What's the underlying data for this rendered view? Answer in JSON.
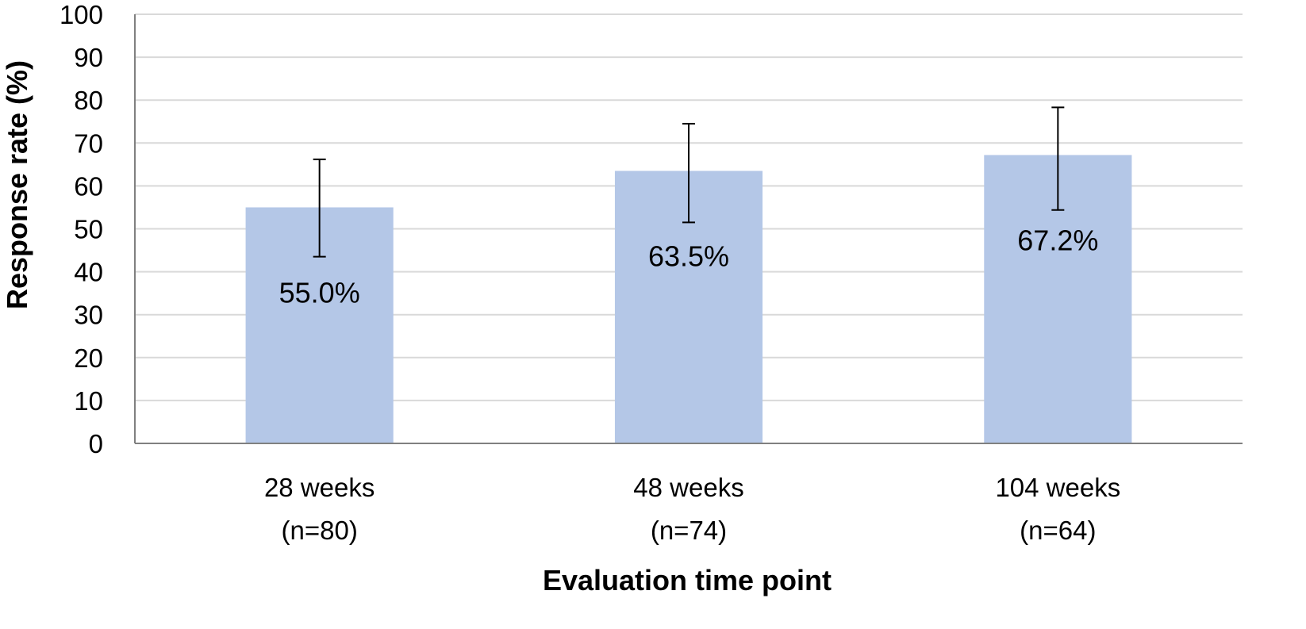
{
  "chart_data": {
    "type": "bar",
    "title": "",
    "xlabel": "Evaluation time point",
    "ylabel": "Response rate (%)",
    "ylim": [
      0,
      100
    ],
    "yticks": [
      0,
      10,
      20,
      30,
      40,
      50,
      60,
      70,
      80,
      90,
      100
    ],
    "grid": true,
    "categories": [
      {
        "line1": "28 weeks",
        "line2": "(n=80)"
      },
      {
        "line1": "48 weeks",
        "line2": "(n=74)"
      },
      {
        "line1": "104 weeks",
        "line2": "(n=64)"
      }
    ],
    "values": [
      55.0,
      63.5,
      67.2
    ],
    "data_labels": [
      "55.0%",
      "63.5%",
      "67.2%"
    ],
    "error_bars": [
      {
        "low": 43.5,
        "high": 66.2
      },
      {
        "low": 51.5,
        "high": 74.5
      },
      {
        "low": 54.4,
        "high": 78.3
      }
    ],
    "colors": {
      "bar": "#b4c7e7",
      "grid": "#d9d9d9",
      "axis": "#808080",
      "error": "#000000"
    }
  }
}
